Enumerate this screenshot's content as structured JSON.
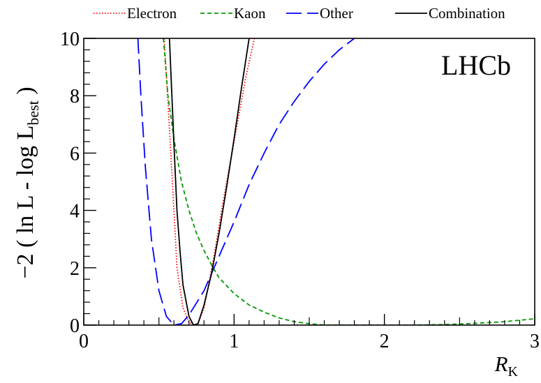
{
  "chart_data": {
    "type": "line",
    "xlabel_main": "R",
    "xlabel_sub": "K",
    "ylabel_prefix": "−2 ( ln L - log L",
    "ylabel_sub": "best",
    "ylabel_suffix": " )",
    "annotation": "LHCb",
    "xlim": [
      0,
      3
    ],
    "ylim": [
      0,
      10
    ],
    "xticks": [
      "0",
      "1",
      "2",
      "3"
    ],
    "yticks": [
      "0",
      "2",
      "4",
      "6",
      "8",
      "10"
    ],
    "legend_position": "top",
    "grid": false,
    "series": [
      {
        "name": "Electron",
        "color": "#ff0000",
        "dash": "dotted",
        "points": [
          [
            0.535,
            10.0
          ],
          [
            0.56,
            7.8
          ],
          [
            0.6,
            4.0
          ],
          [
            0.62,
            2.0
          ],
          [
            0.66,
            0.6
          ],
          [
            0.7,
            0.1
          ],
          [
            0.74,
            0.0
          ],
          [
            0.76,
            0.05
          ],
          [
            0.8,
            0.6
          ],
          [
            0.86,
            2.2
          ],
          [
            0.92,
            4.1
          ],
          [
            1.0,
            6.4
          ],
          [
            1.08,
            8.7
          ],
          [
            1.135,
            10.0
          ]
        ]
      },
      {
        "name": "Kaon",
        "color": "#009900",
        "dash": "dashed",
        "points": [
          [
            0.53,
            10.0
          ],
          [
            0.56,
            8.0
          ],
          [
            0.6,
            6.5
          ],
          [
            0.65,
            5.0
          ],
          [
            0.7,
            4.0
          ],
          [
            0.75,
            3.2
          ],
          [
            0.8,
            2.6
          ],
          [
            0.85,
            2.1
          ],
          [
            0.9,
            1.65
          ],
          [
            1.0,
            1.1
          ],
          [
            1.1,
            0.7
          ],
          [
            1.2,
            0.45
          ],
          [
            1.3,
            0.25
          ],
          [
            1.4,
            0.12
          ],
          [
            1.5,
            0.05
          ],
          [
            1.6,
            0.0
          ],
          [
            1.8,
            0.0
          ],
          [
            2.0,
            0.0
          ],
          [
            2.2,
            0.0
          ],
          [
            2.4,
            0.02
          ],
          [
            2.6,
            0.06
          ],
          [
            2.8,
            0.12
          ],
          [
            3.0,
            0.22
          ]
        ]
      },
      {
        "name": "Other",
        "color": "#0000ff",
        "dash": "longdash",
        "points": [
          [
            0.36,
            10.0
          ],
          [
            0.38,
            8.0
          ],
          [
            0.41,
            5.5
          ],
          [
            0.45,
            3.0
          ],
          [
            0.5,
            1.2
          ],
          [
            0.55,
            0.3
          ],
          [
            0.6,
            0.0
          ],
          [
            0.65,
            0.05
          ],
          [
            0.7,
            0.35
          ],
          [
            0.8,
            1.2
          ],
          [
            0.9,
            2.4
          ],
          [
            1.0,
            3.6
          ],
          [
            1.1,
            4.9
          ],
          [
            1.2,
            6.0
          ],
          [
            1.3,
            7.0
          ],
          [
            1.4,
            7.8
          ],
          [
            1.5,
            8.5
          ],
          [
            1.6,
            9.1
          ],
          [
            1.7,
            9.6
          ],
          [
            1.8,
            10.0
          ]
        ]
      },
      {
        "name": "Combination",
        "color": "#000000",
        "dash": "solid",
        "points": [
          [
            0.57,
            10.0
          ],
          [
            0.6,
            6.3
          ],
          [
            0.62,
            4.0
          ],
          [
            0.64,
            2.6
          ],
          [
            0.66,
            1.4
          ],
          [
            0.7,
            0.3
          ],
          [
            0.73,
            0.0
          ],
          [
            0.76,
            0.05
          ],
          [
            0.8,
            0.7
          ],
          [
            0.85,
            1.8
          ],
          [
            0.9,
            3.2
          ],
          [
            0.95,
            4.8
          ],
          [
            1.0,
            6.5
          ],
          [
            1.05,
            8.3
          ],
          [
            1.1,
            10.0
          ]
        ]
      }
    ]
  }
}
